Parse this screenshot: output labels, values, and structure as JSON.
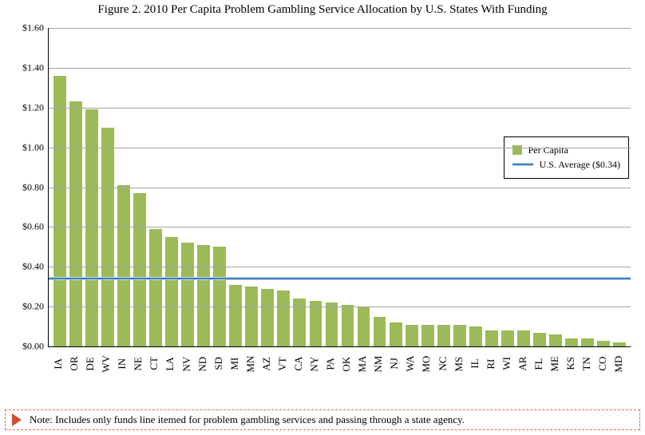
{
  "title": "Figure 2.  2010 Per Capita Problem Gambling Service Allocation by U.S. States With Funding",
  "title_fontsize": 15,
  "note": "Note:  Includes only funds line itemed for problem gambling services and passing through a state agency.",
  "note_fontsize": 13,
  "note_border_color": "#e0704f",
  "note_triangle_color": "#d2502f",
  "chart": {
    "type": "bar",
    "background_color": "#ffffff",
    "grid_color": "#a6a6a6",
    "axis_color": "#000000",
    "bar_color": "#9bbb59",
    "avg_line_color": "#3f7fbf",
    "avg_line_outer_color": "#bcd5e7",
    "ylim": [
      0,
      1.6
    ],
    "ytick_step": 0.2,
    "yticks": [
      "$0.00",
      "$0.20",
      "$0.40",
      "$0.60",
      "$0.80",
      "$1.00",
      "$1.20",
      "$1.40",
      "$1.60"
    ],
    "ytick_fontsize": 12,
    "xlabel_fontsize": 13,
    "avg_value": 0.34,
    "legend": {
      "position_top_pct": 34,
      "series_label": "Per Capita",
      "avg_label": "U.S. Average ($0.34)",
      "fontsize": 12,
      "border_color": "#000000"
    },
    "categories": [
      "IA",
      "OR",
      "DE",
      "WV",
      "IN",
      "NE",
      "CT",
      "LA",
      "NV",
      "ND",
      "SD",
      "MI",
      "MN",
      "AZ",
      "VT",
      "CA",
      "NY",
      "PA",
      "OK",
      "MA",
      "NM",
      "NJ",
      "WA",
      "MO",
      "NC",
      "MS",
      "IL",
      "RI",
      "WI",
      "AR",
      "FL",
      "ME",
      "KS",
      "TN",
      "CO",
      "MD"
    ],
    "values": [
      1.36,
      1.23,
      1.19,
      1.1,
      0.81,
      0.77,
      0.59,
      0.55,
      0.52,
      0.51,
      0.5,
      0.31,
      0.3,
      0.29,
      0.28,
      0.24,
      0.23,
      0.22,
      0.21,
      0.2,
      0.15,
      0.12,
      0.11,
      0.11,
      0.11,
      0.11,
      0.1,
      0.08,
      0.08,
      0.08,
      0.07,
      0.06,
      0.04,
      0.04,
      0.03,
      0.02
    ]
  }
}
